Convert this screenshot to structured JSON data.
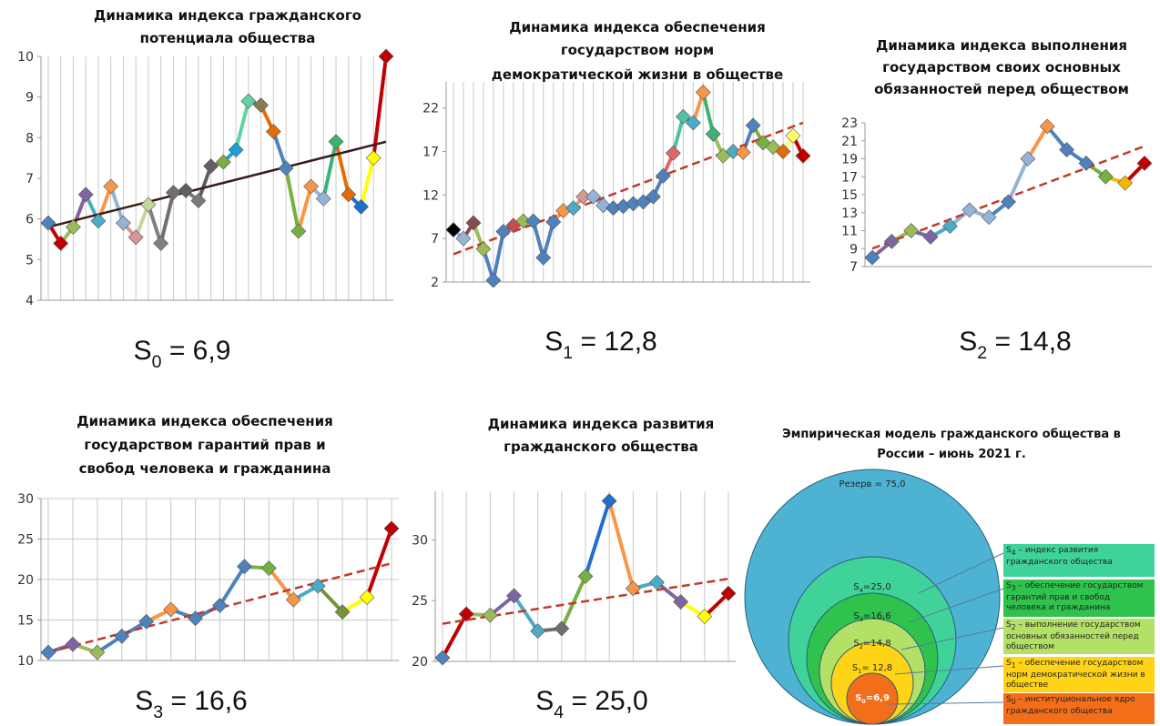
{
  "chart_data": [
    {
      "type": "line",
      "title": [
        "Динамика индекса гражданского",
        "потенциала общества"
      ],
      "caption": {
        "base": "S",
        "sub": "0",
        "rest": " = 6,9"
      },
      "values": [
        5.9,
        5.4,
        5.8,
        6.6,
        5.95,
        6.8,
        5.9,
        5.55,
        6.35,
        5.4,
        6.65,
        6.7,
        6.45,
        7.3,
        7.4,
        7.7,
        8.9,
        8.8,
        8.15,
        7.25,
        5.7,
        6.8,
        6.5,
        7.9,
        6.6,
        6.3,
        7.5,
        10.0
      ],
      "ylim": [
        4,
        10
      ],
      "yticks": [
        4,
        5,
        6,
        7,
        8,
        9,
        10
      ],
      "grid": "x",
      "trend": {
        "values": [
          5.8,
          7.9
        ],
        "color": "#3a1a1a",
        "dashed": false
      },
      "palette": [
        "#4f81bd",
        "#c00000",
        "#9bbb59",
        "#8064a2",
        "#4bacc6",
        "#f79646",
        "#95b3d7",
        "#d99694",
        "#c3d69b",
        "#7f7f7f",
        "#6f6f6f",
        "#5f5f5f",
        "#7a7a7a",
        "#606060",
        "#76b041",
        "#1f9ede",
        "#5fd3a0",
        "#8a7a50",
        "#e36c09",
        "#4f81bd",
        "#76b041",
        "#f79646",
        "#95b3d7",
        "#3cb371",
        "#e36c09",
        "#1f6fd1",
        "#ffff00",
        "#c00000"
      ]
    },
    {
      "type": "line",
      "title": [
        "Динамика индекса обеспечения",
        "государством норм",
        "демократической жизни в обществе"
      ],
      "caption": {
        "base": "S",
        "sub": "1",
        "rest": " = 12,8"
      },
      "values": [
        8,
        7,
        8.8,
        5.8,
        2.2,
        7.8,
        8.5,
        9,
        9,
        4.8,
        8.9,
        10.2,
        10.5,
        11.8,
        11.8,
        10.8,
        10.5,
        10.7,
        11,
        11.2,
        11.8,
        14.2,
        16.8,
        21,
        20.3,
        23.8,
        19,
        16.5,
        17,
        16.9,
        20,
        18,
        17.5,
        17,
        18.8,
        16.5
      ],
      "ylim": [
        2,
        25
      ],
      "yticks": [
        2,
        7,
        12,
        17,
        22
      ],
      "grid": "x",
      "trend": {
        "values": [
          5.2,
          20.3
        ],
        "color": "#c0392b",
        "dashed": true
      },
      "palette": [
        "#000000",
        "#95b3d7",
        "#8b4a4a",
        "#9bbb59",
        "#4f81bd",
        "#4f81bd",
        "#c0504d",
        "#9bbb59",
        "#4f81bd",
        "#4f81bd",
        "#4f81bd",
        "#f79646",
        "#4bacc6",
        "#d99694",
        "#95b3d7",
        "#95b3d7",
        "#4f81bd",
        "#4f81bd",
        "#4f81bd",
        "#4f81bd",
        "#4f81bd",
        "#4f81bd",
        "#e06666",
        "#4fc1a0",
        "#4bacc6",
        "#f79646",
        "#3cb371",
        "#9bbb59",
        "#4bacc6",
        "#f79646",
        "#4f81bd",
        "#76b041",
        "#9bbb59",
        "#e36c09",
        "#ffff66",
        "#c00000"
      ]
    },
    {
      "type": "line",
      "title": [
        "Динамика индекса выполнения",
        "государством своих основных",
        "обязанностей перед обществом"
      ],
      "caption": {
        "base": "S",
        "sub": "2",
        "rest": " = 14,8"
      },
      "values": [
        8,
        9.8,
        11,
        10.3,
        11.5,
        13.3,
        12.5,
        14.2,
        19,
        22.6,
        20,
        18.5,
        17,
        16.3,
        18.5
      ],
      "ylim": [
        7,
        23
      ],
      "yticks": [
        7,
        9,
        11,
        13,
        15,
        17,
        19,
        21,
        23
      ],
      "grid": "none",
      "trend": {
        "values": [
          9,
          20.4
        ],
        "color": "#c0392b",
        "dashed": true
      },
      "palette": [
        "#4f81bd",
        "#8064a2",
        "#9bbb59",
        "#8064a2",
        "#4bacc6",
        "#95b3d7",
        "#95b3d7",
        "#4f81bd",
        "#95b3d7",
        "#f79646",
        "#4f81bd",
        "#4f81bd",
        "#76b041",
        "#f5b800",
        "#c00000"
      ]
    },
    {
      "type": "line",
      "title": [
        "Динамика индекса обеспечения",
        "государством гарантий прав и",
        "свобод человека и гражданина"
      ],
      "caption": {
        "base": "S",
        "sub": "3",
        "rest": " = 16,6"
      },
      "values": [
        11,
        12,
        11,
        13,
        14.8,
        16.3,
        15.2,
        16.8,
        21.6,
        21.4,
        17.5,
        19.2,
        16,
        17.8,
        26.3
      ],
      "ylim": [
        10,
        30
      ],
      "yticks": [
        10,
        15,
        20,
        25,
        30
      ],
      "grid": "both",
      "trend": {
        "values": [
          11,
          22
        ],
        "color": "#c0392b",
        "dashed": true
      },
      "palette": [
        "#4f81bd",
        "#8064a2",
        "#9bbb59",
        "#4f81bd",
        "#4f81bd",
        "#f79646",
        "#4f81bd",
        "#4f81bd",
        "#4f81bd",
        "#76b041",
        "#f79646",
        "#4bacc6",
        "#76933c",
        "#ffff00",
        "#c00000"
      ]
    },
    {
      "type": "line",
      "title": [
        "Динамика индекса развития",
        "гражданского общества"
      ],
      "caption": {
        "base": "S",
        "sub": "4",
        "rest": " = 25,0"
      },
      "values": [
        20.3,
        23.9,
        23.8,
        25.4,
        22.5,
        22.7,
        27,
        33.2,
        26,
        26.5,
        24.9,
        23.7,
        25.6
      ],
      "ylim": [
        20,
        34
      ],
      "yticks": [
        20,
        25,
        30
      ],
      "grid": "x",
      "trend": {
        "values": [
          23.1,
          26.8
        ],
        "color": "#c0392b",
        "dashed": true
      },
      "palette": [
        "#4f81bd",
        "#c00000",
        "#9bbb59",
        "#8064a2",
        "#4bacc6",
        "#6f6f6f",
        "#76b041",
        "#1f6fd1",
        "#f79646",
        "#4bacc6",
        "#8064a2",
        "#ffff00",
        "#c00000"
      ]
    },
    {
      "type": "nested-circles",
      "title": [
        "Эмпирическая модель гражданского общества в",
        "России – июнь 2021 г."
      ],
      "items": [
        {
          "value": 75.0,
          "color": "#4eb3d3",
          "label": {
            "base": "Резерв = 75,0"
          }
        },
        {
          "value": 25.0,
          "color": "#3fd39a",
          "label": {
            "base": "S",
            "sub": "4",
            "rest": "=25,0"
          },
          "legend": {
            "base": "S",
            "sub": "4",
            "rest": " – индекс развития гражданского общества"
          }
        },
        {
          "value": 16.6,
          "color": "#2fc24c",
          "label": {
            "base": "S",
            "sub": "3",
            "rest": "=16,6"
          },
          "legend": {
            "base": "S",
            "sub": "3",
            "rest": " – обеспечение государством гарантий прав и свобод человека и гражданина"
          }
        },
        {
          "value": 14.8,
          "color": "#b3e066",
          "label": {
            "base": "S",
            "sub": "2",
            "rest": "=14,8"
          },
          "legend": {
            "base": "S",
            "sub": "2",
            "rest": " – выполнение государством основных обязанностей перед обществом"
          }
        },
        {
          "value": 12.8,
          "color": "#ffd416",
          "label": {
            "base": "S",
            "sub": "1",
            "rest": "= 12,8"
          },
          "legend": {
            "base": "S",
            "sub": "1",
            "rest": " – обеспечение государством норм демократической жизни в обществе"
          }
        },
        {
          "value": 6.9,
          "color": "#f26e1b",
          "label": {
            "base": "S",
            "sub": "0",
            "rest": "=6,9"
          },
          "legend": {
            "base": "S",
            "sub": "0",
            "rest": " – институциональное ядро гражданского общества"
          }
        }
      ]
    }
  ]
}
